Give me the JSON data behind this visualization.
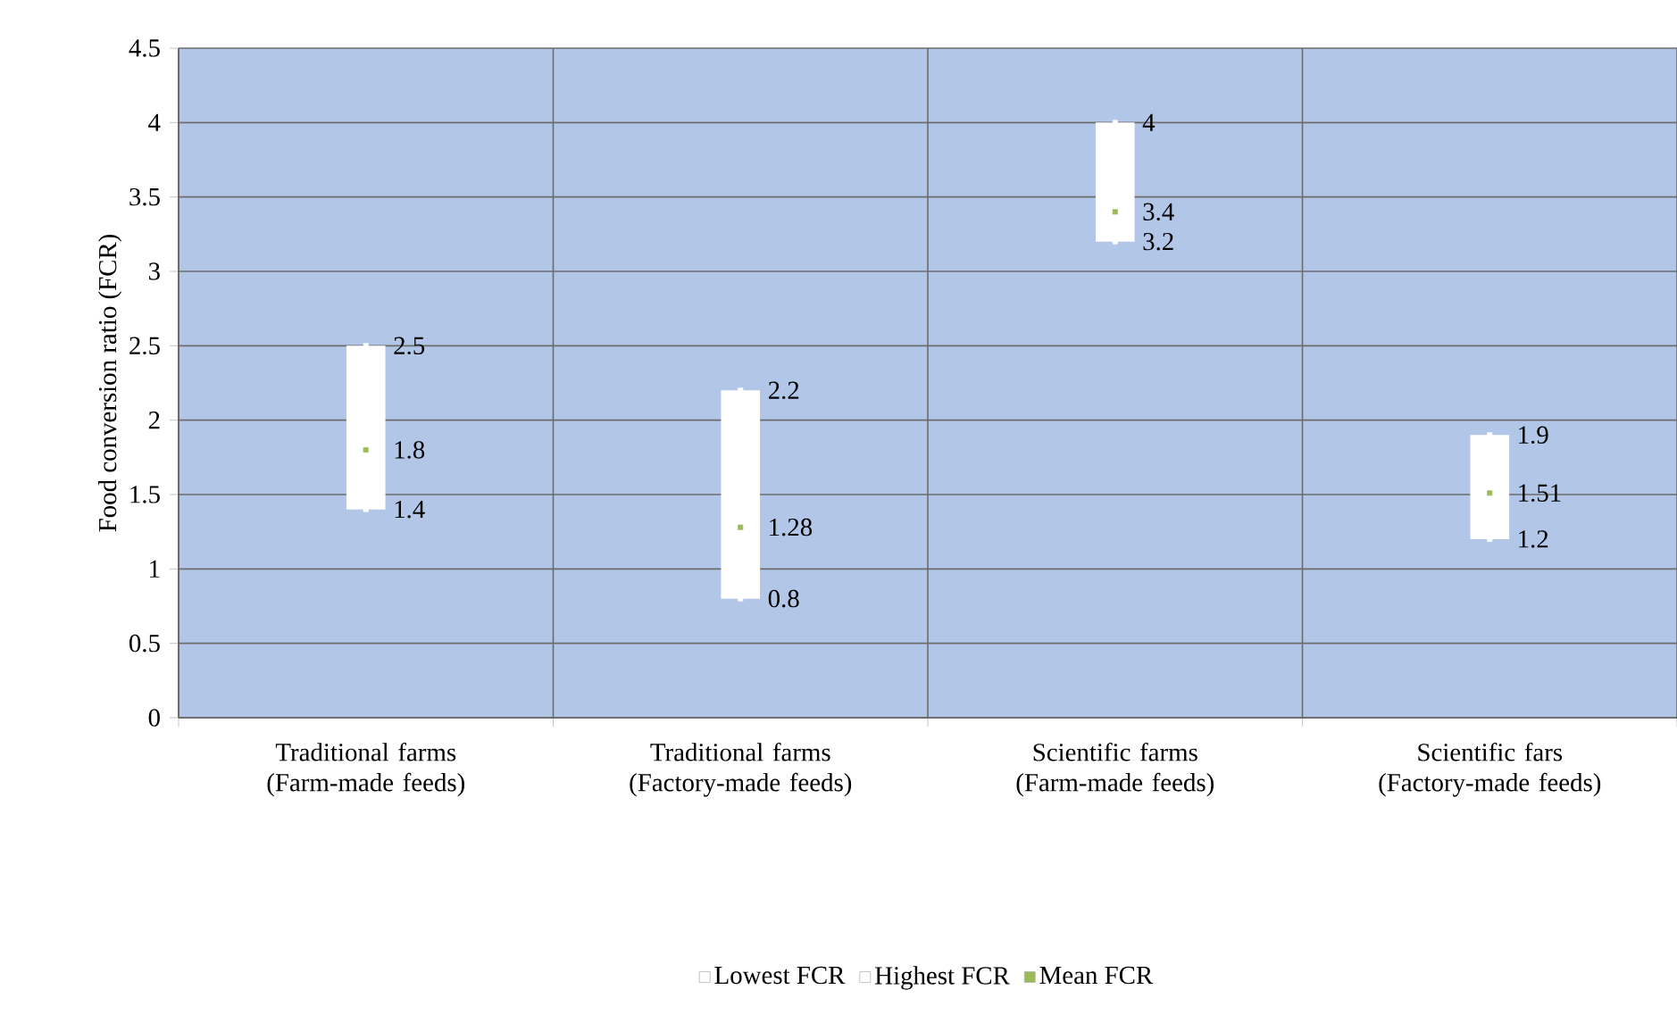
{
  "chart_data": {
    "type": "bar",
    "ylabel": "Food conversion ratio (FCR)",
    "categories": [
      "Traditional farms (Farm-made feeds)",
      "Traditional farms (Factory-made feeds)",
      "Scientific farms (Farm-made feeds)",
      "Scientific fars (Factory-made feeds)"
    ],
    "series": [
      {
        "color": "#ffffff",
        "base": [
          1.4,
          0.8,
          3.2,
          1.2
        ],
        "values": [
          1.1,
          1.4,
          0.8,
          0.7
        ]
      },
      {
        "name": "Lowest  FCR",
        "type": "scatter",
        "marker": "square",
        "color": "#ffffff",
        "values": [
          1.4,
          0.8,
          3.2,
          1.2
        ],
        "value_labels": [
          "1.4",
          "0.8",
          "3.2",
          "1.2"
        ]
      },
      {
        "name": "Highest FCR",
        "type": "scatter",
        "marker": "square",
        "color": "#ffffff",
        "values": [
          2.5,
          2.2,
          4,
          1.9
        ],
        "value_labels": [
          "2.5",
          "2.2",
          "4",
          "1.9"
        ]
      },
      {
        "name": "Mean FCR",
        "type": "scatter",
        "marker": "square",
        "color": "#9bbb59",
        "values": [
          1.8,
          1.28,
          3.4,
          1.51
        ],
        "value_labels": [
          "1.8",
          "1.28",
          "3.4",
          "1.51"
        ]
      }
    ],
    "ylim": [
      0,
      4.5
    ],
    "yticks": [
      0,
      0.5,
      1,
      1.5,
      2,
      2.5,
      3,
      3.5,
      4,
      4.5
    ],
    "grid": true,
    "legend": "bottom"
  }
}
